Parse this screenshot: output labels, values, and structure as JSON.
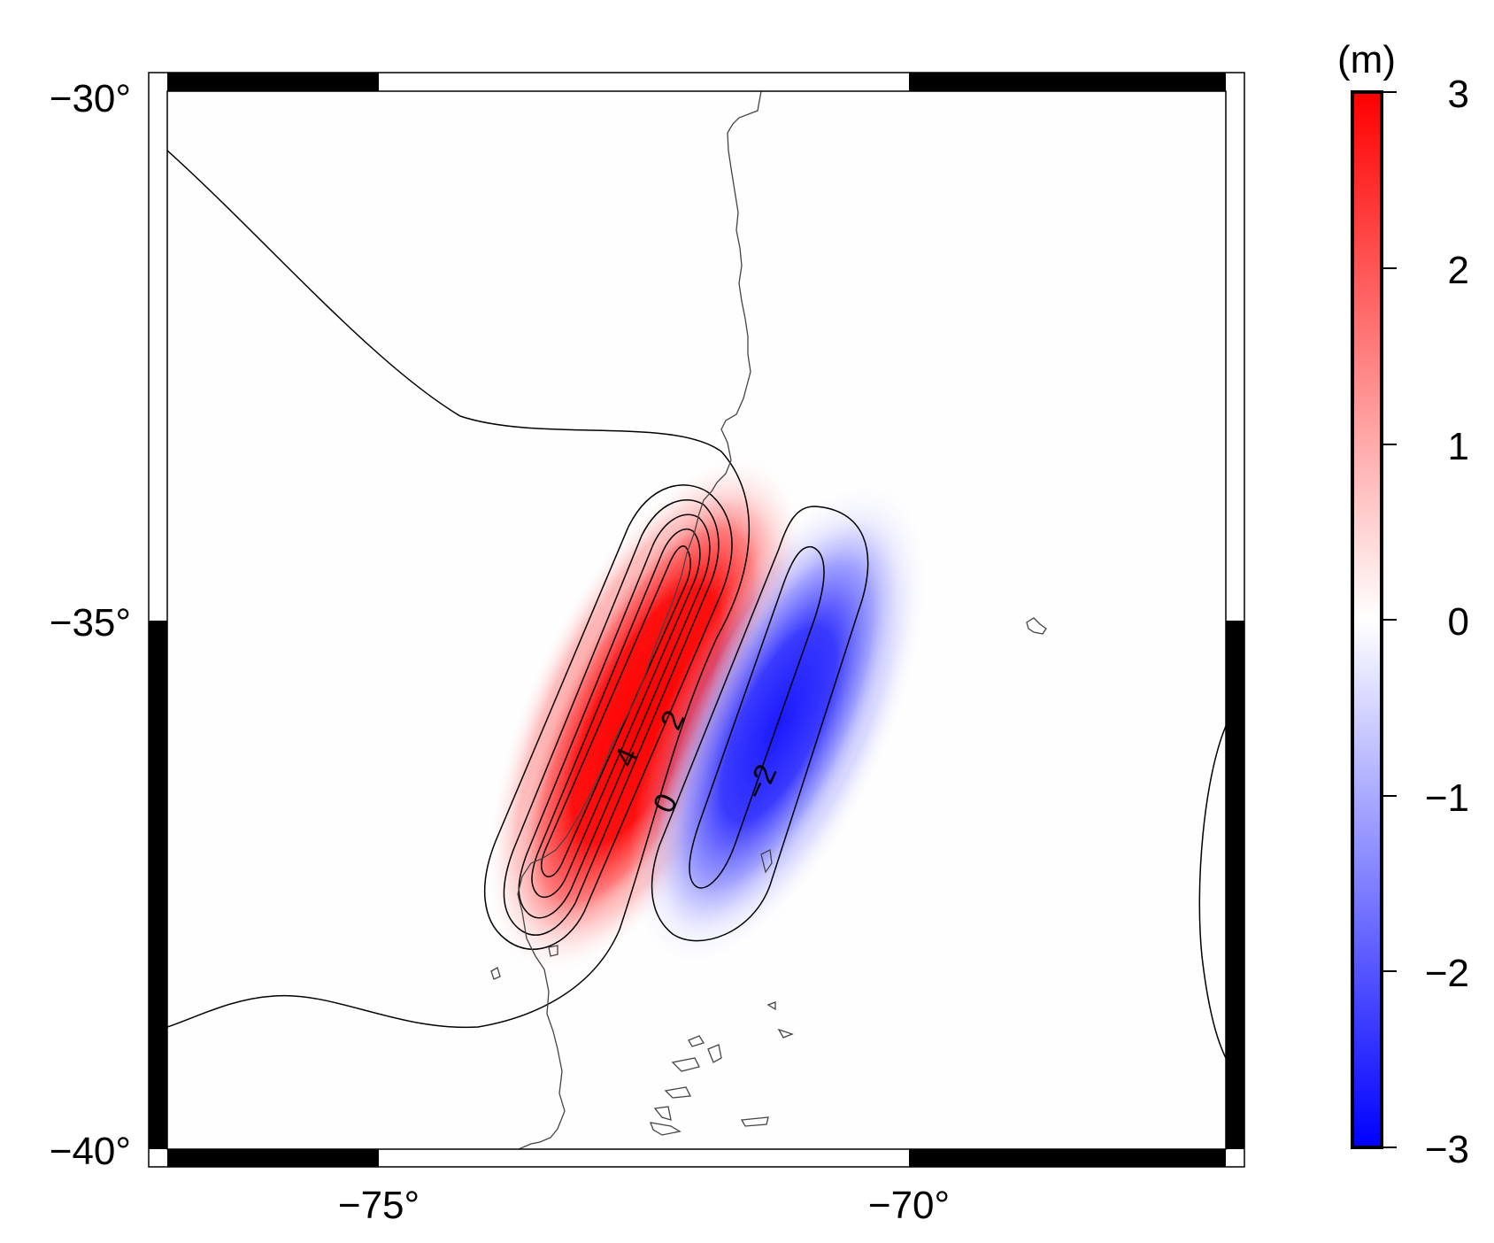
{
  "map": {
    "longitude_range": [
      -77.2,
      -67.2
    ],
    "latitude_range": [
      -40,
      -30
    ],
    "x_ticks": [
      "−75°",
      "−70°"
    ],
    "y_ticks": [
      "−30°",
      "−35°",
      "−40°"
    ],
    "field": "deformation (vertical displacement)",
    "colormap": {
      "low": "#0000ff",
      "mid": "#ffffff",
      "high": "#ff0000"
    },
    "features": [
      "coastline",
      "contours"
    ]
  },
  "contours": {
    "labels": [
      "4",
      "2",
      "0",
      "−2"
    ]
  },
  "colorbar": {
    "unit": "(m)",
    "range": [
      -3,
      3
    ],
    "ticks": [
      "3",
      "2",
      "1",
      "0",
      "−1",
      "−2",
      "−3"
    ]
  }
}
